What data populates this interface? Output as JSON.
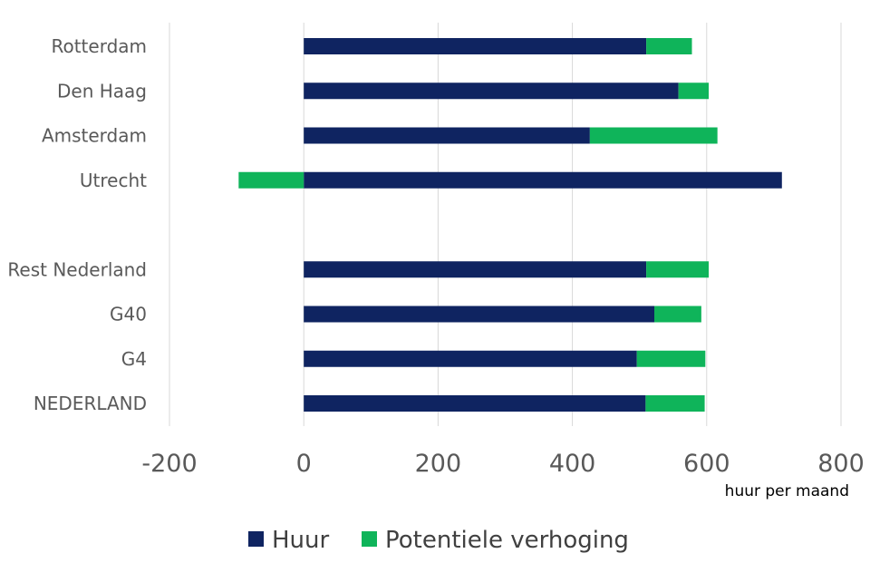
{
  "chart_data": {
    "type": "bar",
    "orientation": "horizontal",
    "stacked": true,
    "categories": [
      "Rotterdam",
      "Den Haag",
      "Amsterdam",
      "Utrecht",
      "",
      "Rest Nederland",
      "G40",
      "G4",
      "NEDERLAND"
    ],
    "series": [
      {
        "name": "Huur",
        "color": "#0f2461",
        "values": [
          510,
          558,
          426,
          712,
          null,
          510,
          522,
          496,
          509
        ]
      },
      {
        "name": "Potentiele verhoging",
        "color": "#0fb45a",
        "values": [
          68,
          45,
          190,
          -97,
          null,
          93,
          70,
          102,
          88
        ]
      }
    ],
    "xlim": [
      -200,
      800
    ],
    "xticks": [
      "-200",
      "0",
      "200",
      "400",
      "600",
      "800"
    ],
    "xlabel": "huur per maand",
    "ylabel": "",
    "title": "",
    "grid": "vertical",
    "legend_position": "bottom"
  }
}
